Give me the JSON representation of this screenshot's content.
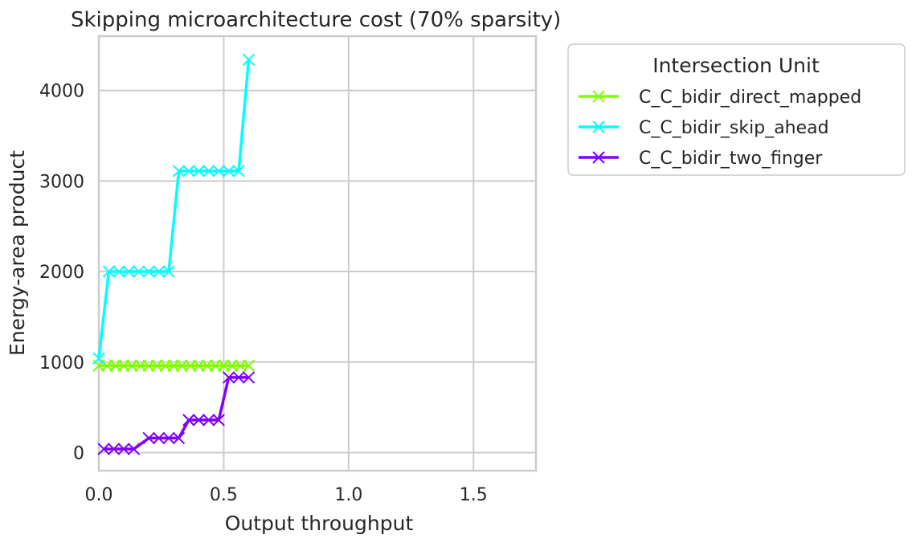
{
  "chart_data": {
    "type": "line",
    "title": "Skipping microarchitecture cost (70% sparsity)",
    "xlabel": "Output throughput",
    "ylabel": "Energy-area product",
    "xlim": [
      0,
      1.75
    ],
    "ylim": [
      -200,
      4600
    ],
    "xticks": [
      0.0,
      0.5,
      1.0,
      1.5
    ],
    "xtick_labels": [
      "0.0",
      "0.5",
      "1.0",
      "1.5"
    ],
    "yticks": [
      0,
      1000,
      2000,
      3000,
      4000
    ],
    "ytick_labels": [
      "0",
      "1000",
      "2000",
      "3000",
      "4000"
    ],
    "grid": true,
    "legend": {
      "title": "Intersection Unit",
      "placement": "outside-upper-right"
    },
    "series": [
      {
        "name": "C_C_bidir_direct_mapped",
        "color": "#80ff00",
        "marker": "x",
        "x": [
          0.0,
          0.033,
          0.067,
          0.1,
          0.133,
          0.167,
          0.2,
          0.233,
          0.267,
          0.3,
          0.333,
          0.367,
          0.4,
          0.433,
          0.467,
          0.5,
          0.533,
          0.567,
          0.6
        ],
        "y": [
          960,
          960,
          960,
          960,
          960,
          960,
          960,
          960,
          960,
          960,
          960,
          960,
          960,
          960,
          960,
          960,
          960,
          960,
          960
        ]
      },
      {
        "name": "C_C_bidir_skip_ahead",
        "color": "#00ffff",
        "marker": "x",
        "x": [
          0.0,
          0.04,
          0.08,
          0.12,
          0.16,
          0.2,
          0.24,
          0.28,
          0.32,
          0.36,
          0.4,
          0.44,
          0.48,
          0.52,
          0.56,
          0.6
        ],
        "y": [
          1040,
          2000,
          2000,
          2000,
          2000,
          2000,
          2000,
          2000,
          3110,
          3110,
          3110,
          3110,
          3110,
          3110,
          3110,
          4340
        ]
      },
      {
        "name": "C_C_bidir_two_finger",
        "color": "#7f00ff",
        "marker": "x",
        "x": [
          0.02,
          0.06,
          0.1,
          0.14,
          0.2,
          0.24,
          0.28,
          0.32,
          0.36,
          0.4,
          0.44,
          0.48,
          0.52,
          0.56,
          0.6
        ],
        "y": [
          40,
          40,
          40,
          40,
          160,
          160,
          160,
          160,
          360,
          360,
          360,
          360,
          830,
          830,
          830
        ]
      }
    ]
  }
}
